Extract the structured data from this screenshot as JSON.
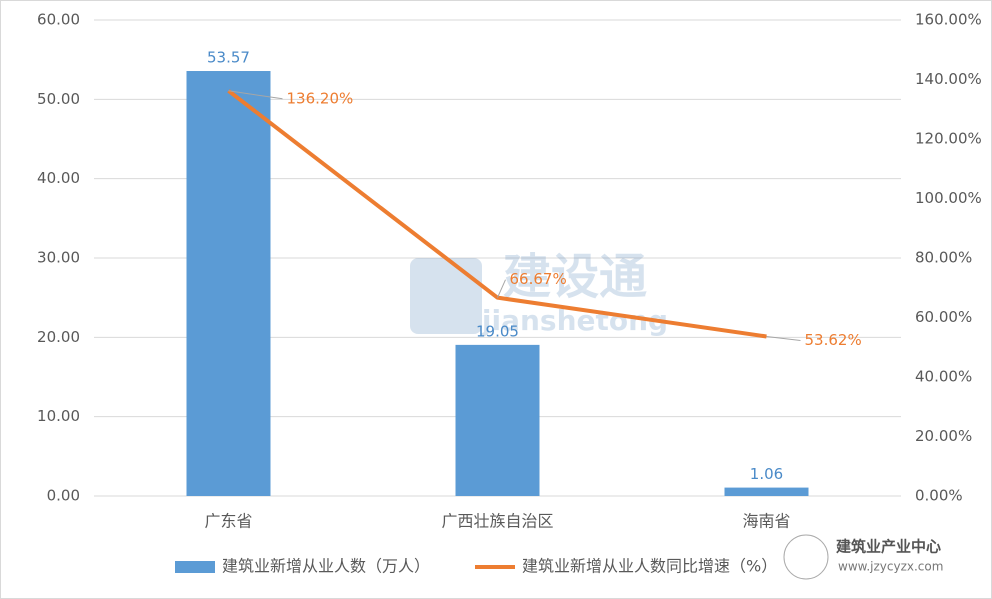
{
  "chart_data": {
    "type": "bar",
    "categories": [
      "广东省",
      "广西壮族自治区",
      "海南省"
    ],
    "series": [
      {
        "name": "建筑业新增从业人数（万人）",
        "type": "bar",
        "color": "#5b9bd5",
        "values": [
          53.57,
          19.05,
          1.06
        ]
      },
      {
        "name": "建筑业新增从业人数同比增速（%）",
        "type": "line",
        "axis": "y2",
        "color": "#ed7d31",
        "values": [
          136.2,
          66.67,
          53.62
        ],
        "value_labels": [
          "136.20%",
          "66.67%",
          "53.62%"
        ]
      }
    ],
    "ylim": [
      0,
      60
    ],
    "yticks": [
      {
        "value": 0,
        "label": "0.00"
      },
      {
        "value": 10,
        "label": "10.00"
      },
      {
        "value": 20,
        "label": "20.00"
      },
      {
        "value": 30,
        "label": "30.00"
      },
      {
        "value": 40,
        "label": "40.00"
      },
      {
        "value": 50,
        "label": "50.00"
      },
      {
        "value": 60,
        "label": "60.00"
      }
    ],
    "y2lim": [
      0,
      160
    ],
    "y2ticks": [
      {
        "value": 0,
        "label": "0.00%"
      },
      {
        "value": 20,
        "label": "20.00%"
      },
      {
        "value": 40,
        "label": "40.00%"
      },
      {
        "value": 60,
        "label": "60.00%"
      },
      {
        "value": 80,
        "label": "80.00%"
      },
      {
        "value": 100,
        "label": "100.00%"
      },
      {
        "value": 120,
        "label": "120.00%"
      },
      {
        "value": 140,
        "label": "140.00%"
      },
      {
        "value": 160,
        "label": "160.00%"
      }
    ],
    "grid": true,
    "legend": "bottom"
  },
  "watermark": {
    "title": "建设通",
    "subtitle": "jianshetong"
  },
  "logo": {
    "title": "建筑业产业中心",
    "url": "www.jzycyzx.com"
  }
}
